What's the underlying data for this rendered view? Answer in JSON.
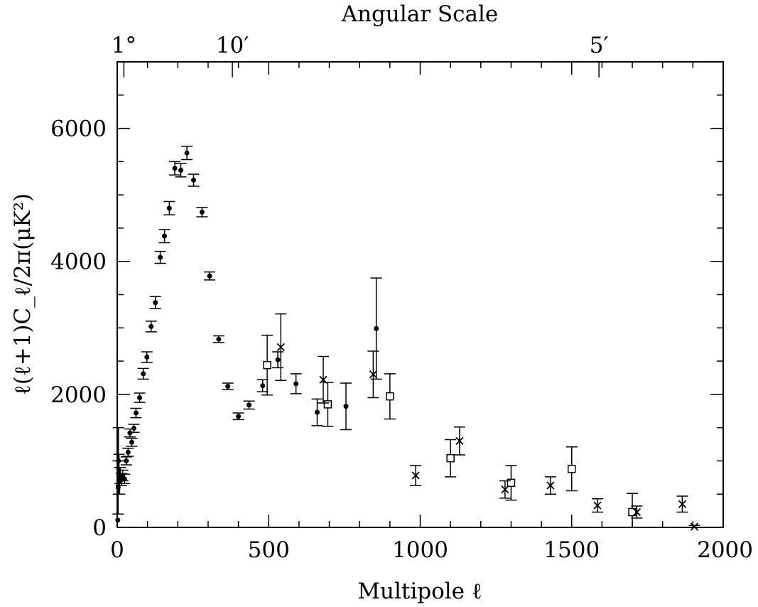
{
  "chart_data": {
    "type": "scatter",
    "title": "",
    "xlabel": "Multipole ℓ",
    "ylabel": "ℓ(ℓ+1)C_ℓ/2π(μK²)",
    "top_axis_title": "Angular Scale",
    "top_ticks": [
      {
        "label": "1°",
        "x": 22
      },
      {
        "label": "10′",
        "x": 380
      },
      {
        "label": "5′",
        "x": 1590
      }
    ],
    "xlim": [
      0,
      2000
    ],
    "ylim": [
      0,
      7000
    ],
    "xticks": [
      0,
      500,
      1000,
      1500,
      2000
    ],
    "yticks": [
      0,
      2000,
      4000,
      6000
    ],
    "grid": false,
    "series": [
      {
        "marker": "dot",
        "points": [
          {
            "x": 2,
            "y": 110,
            "err": 0
          },
          {
            "x": 3,
            "y": 600,
            "err": 400
          },
          {
            "x": 4,
            "y": 1000,
            "err": 500
          },
          {
            "x": 6,
            "y": 800,
            "err": 300
          },
          {
            "x": 8,
            "y": 700,
            "err": 200
          },
          {
            "x": 10,
            "y": 780,
            "err": 120
          },
          {
            "x": 14,
            "y": 720,
            "err": 90
          },
          {
            "x": 18,
            "y": 780,
            "err": 80
          },
          {
            "x": 24,
            "y": 730,
            "err": 70
          },
          {
            "x": 30,
            "y": 1000,
            "err": 60
          },
          {
            "x": 36,
            "y": 1130,
            "err": 60
          },
          {
            "x": 42,
            "y": 1420,
            "err": 60
          },
          {
            "x": 48,
            "y": 1280,
            "err": 60
          },
          {
            "x": 55,
            "y": 1490,
            "err": 60
          },
          {
            "x": 62,
            "y": 1720,
            "err": 70
          },
          {
            "x": 74,
            "y": 1950,
            "err": 70
          },
          {
            "x": 86,
            "y": 2310,
            "err": 80
          },
          {
            "x": 98,
            "y": 2560,
            "err": 80
          },
          {
            "x": 112,
            "y": 3020,
            "err": 80
          },
          {
            "x": 126,
            "y": 3380,
            "err": 90
          },
          {
            "x": 142,
            "y": 4060,
            "err": 90
          },
          {
            "x": 156,
            "y": 4380,
            "err": 100
          },
          {
            "x": 172,
            "y": 4800,
            "err": 100
          },
          {
            "x": 190,
            "y": 5400,
            "err": 100
          },
          {
            "x": 210,
            "y": 5370,
            "err": 100
          },
          {
            "x": 230,
            "y": 5630,
            "err": 100
          },
          {
            "x": 252,
            "y": 5220,
            "err": 90
          },
          {
            "x": 280,
            "y": 4740,
            "err": 70
          },
          {
            "x": 305,
            "y": 3780,
            "err": 60
          },
          {
            "x": 335,
            "y": 2830,
            "err": 50
          },
          {
            "x": 365,
            "y": 2120,
            "err": 50
          },
          {
            "x": 400,
            "y": 1670,
            "err": 50
          },
          {
            "x": 435,
            "y": 1840,
            "err": 60
          },
          {
            "x": 480,
            "y": 2130,
            "err": 90
          },
          {
            "x": 530,
            "y": 2520,
            "err": 120
          },
          {
            "x": 590,
            "y": 2160,
            "err": 150
          },
          {
            "x": 660,
            "y": 1730,
            "err": 200
          },
          {
            "x": 755,
            "y": 1820,
            "err": 350
          },
          {
            "x": 855,
            "y": 2990,
            "err": 760
          }
        ]
      },
      {
        "marker": "square",
        "points": [
          {
            "x": 495,
            "y": 2440,
            "err": 450
          },
          {
            "x": 695,
            "y": 1850,
            "err": 330
          },
          {
            "x": 900,
            "y": 1970,
            "err": 340
          },
          {
            "x": 1100,
            "y": 1040,
            "err": 280
          },
          {
            "x": 1300,
            "y": 670,
            "err": 260
          },
          {
            "x": 1500,
            "y": 880,
            "err": 330
          },
          {
            "x": 1700,
            "y": 230,
            "err": 280
          }
        ]
      },
      {
        "marker": "cross",
        "points": [
          {
            "x": 540,
            "y": 2710,
            "err": 500
          },
          {
            "x": 680,
            "y": 2220,
            "err": 350
          },
          {
            "x": 845,
            "y": 2300,
            "err": 350
          },
          {
            "x": 985,
            "y": 780,
            "err": 150
          },
          {
            "x": 1130,
            "y": 1300,
            "err": 210
          },
          {
            "x": 1280,
            "y": 570,
            "err": 130
          },
          {
            "x": 1430,
            "y": 630,
            "err": 130
          },
          {
            "x": 1585,
            "y": 330,
            "err": 100
          },
          {
            "x": 1715,
            "y": 230,
            "err": 90
          },
          {
            "x": 1865,
            "y": 350,
            "err": 120
          },
          {
            "x": 1905,
            "y": 10,
            "err": 20
          }
        ]
      }
    ]
  }
}
